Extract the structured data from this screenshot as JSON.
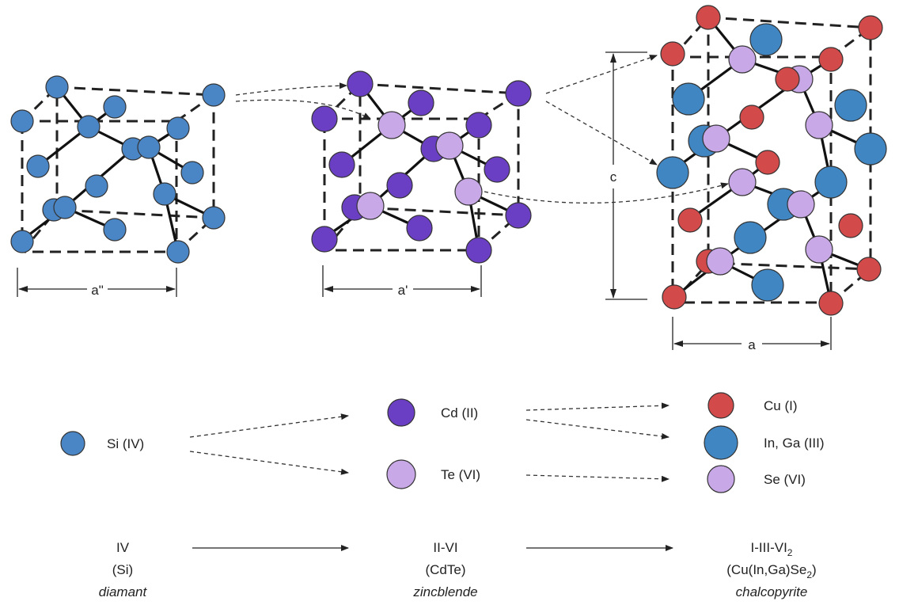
{
  "colors": {
    "si": "#4a86c6",
    "cd": "#6a3fc4",
    "te": "#c9a8e8",
    "cu": "#d24a4a",
    "inga": "#3f86c2",
    "se": "#c9a8e8"
  },
  "dimensions": {
    "diamond_a": "a\"",
    "zincblende_a": "a'",
    "chalcopyrite_a": "a",
    "chalcopyrite_c": "c"
  },
  "legend": {
    "si": "Si (IV)",
    "cd": "Cd (II)",
    "te": "Te (VI)",
    "cu": "Cu (I)",
    "inga": "In, Ga (III)",
    "se": "Se (VI)"
  },
  "structures": [
    {
      "group": "IV",
      "formula": "(Si)",
      "name": "diamant"
    },
    {
      "group": "II-VI",
      "formula": "(CdTe)",
      "name": "zincblende"
    },
    {
      "group": "I-III-VI",
      "group_sub": "2",
      "formula": "(Cu(In,Ga)Se",
      "formula_sub": "2",
      "formula_end": ")",
      "name": "chalcopyrite"
    }
  ]
}
